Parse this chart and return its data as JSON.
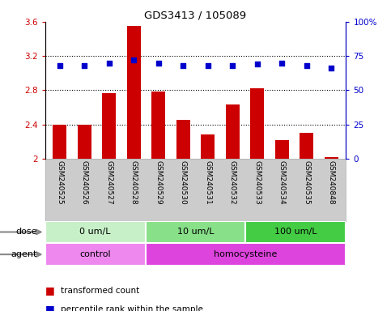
{
  "title": "GDS3413 / 105089",
  "samples": [
    "GSM240525",
    "GSM240526",
    "GSM240527",
    "GSM240528",
    "GSM240529",
    "GSM240530",
    "GSM240531",
    "GSM240532",
    "GSM240533",
    "GSM240534",
    "GSM240535",
    "GSM240848"
  ],
  "red_values": [
    2.4,
    2.4,
    2.77,
    3.55,
    2.78,
    2.45,
    2.28,
    2.63,
    2.82,
    2.22,
    2.3,
    2.02
  ],
  "blue_pct": [
    68,
    68,
    70,
    72,
    70,
    68,
    68,
    68,
    69,
    70,
    68,
    66
  ],
  "ylim_left": [
    2.0,
    3.6
  ],
  "ylim_right": [
    0,
    100
  ],
  "yticks_left": [
    2.0,
    2.4,
    2.8,
    3.2,
    3.6
  ],
  "ytick_labels_left": [
    "2",
    "2.4",
    "2.8",
    "3.2",
    "3.6"
  ],
  "yticks_right": [
    0,
    25,
    50,
    75,
    100
  ],
  "ytick_labels_right": [
    "0",
    "25",
    "50",
    "75",
    "100%"
  ],
  "hgrid_lines": [
    2.4,
    2.8,
    3.2
  ],
  "dose_groups": [
    {
      "label": "0 um/L",
      "start": 0,
      "end": 3
    },
    {
      "label": "10 um/L",
      "start": 4,
      "end": 7
    },
    {
      "label": "100 um/L",
      "start": 8,
      "end": 11
    }
  ],
  "dose_colors": [
    "#c8f0c8",
    "#88e088",
    "#44cc44"
  ],
  "agent_groups": [
    {
      "label": "control",
      "start": 0,
      "end": 3
    },
    {
      "label": "homocysteine",
      "start": 4,
      "end": 11
    }
  ],
  "agent_colors": [
    "#ee88ee",
    "#dd44dd"
  ],
  "red_color": "#cc0000",
  "blue_color": "#0000cc",
  "bar_width": 0.55,
  "tick_label_area_color": "#cccccc",
  "dose_label": "dose",
  "agent_label": "agent",
  "legend_red": "transformed count",
  "legend_blue": "percentile rank within the sample",
  "arrow_color": "#888888"
}
